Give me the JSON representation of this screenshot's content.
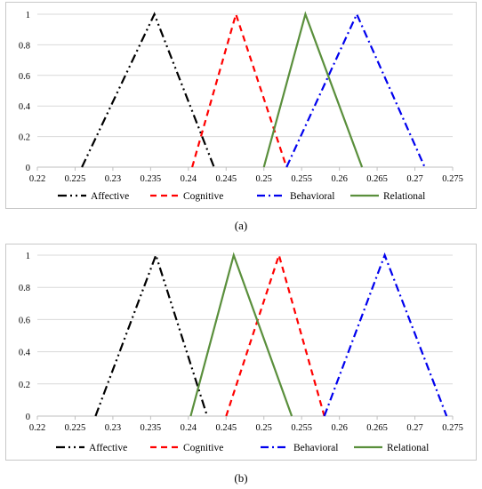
{
  "chart_data": [
    {
      "type": "line",
      "panel_label": "a",
      "xlim": [
        0.22,
        0.275
      ],
      "ylim": [
        0,
        1
      ],
      "xticks": [
        "0.22",
        "0.225",
        "0.23",
        "0.235",
        "0.24",
        "0.245",
        "0.25",
        "0.255",
        "0.26",
        "0.265",
        "0.27",
        "0.275"
      ],
      "yticks": [
        "0",
        "0.2",
        "0.4",
        "0.6",
        "0.8",
        "1"
      ],
      "grid": true,
      "legend_position": "bottom",
      "series": [
        {
          "name": "Affective",
          "color": "#000000",
          "dash": "10,4,2,4,2,4",
          "points": [
            [
              0.2259,
              0
            ],
            [
              0.2355,
              1
            ],
            [
              0.2434,
              0
            ]
          ]
        },
        {
          "name": "Cognitive",
          "color": "#ff0000",
          "dash": "7,5",
          "points": [
            [
              0.2405,
              0
            ],
            [
              0.2463,
              1
            ],
            [
              0.253,
              0
            ]
          ]
        },
        {
          "name": "Behavioral",
          "color": "#0000ee",
          "dash": "9,4,2,4",
          "points": [
            [
              0.253,
              0
            ],
            [
              0.2623,
              1
            ],
            [
              0.2713,
              0
            ]
          ]
        },
        {
          "name": "Relational",
          "color": "#5a8f3c",
          "dash": "",
          "points": [
            [
              0.25,
              0
            ],
            [
              0.2555,
              1
            ],
            [
              0.263,
              0
            ]
          ]
        }
      ]
    },
    {
      "type": "line",
      "panel_label": "b",
      "xlim": [
        0.22,
        0.275
      ],
      "ylim": [
        0,
        1
      ],
      "xticks": [
        "0.22",
        "0.225",
        "0.23",
        "0.235",
        "0.24",
        "0.245",
        "0.25",
        "0.255",
        "0.26",
        "0.265",
        "0.27",
        "0.275"
      ],
      "yticks": [
        "0",
        "0.2",
        "0.4",
        "0.6",
        "0.8",
        "1"
      ],
      "grid": true,
      "legend_position": "bottom",
      "series": [
        {
          "name": "Affective",
          "color": "#000000",
          "dash": "10,4,2,4,2,4",
          "points": [
            [
              0.2277,
              0
            ],
            [
              0.2357,
              1
            ],
            [
              0.2425,
              0
            ]
          ]
        },
        {
          "name": "Cognitive",
          "color": "#ff0000",
          "dash": "7,5",
          "points": [
            [
              0.245,
              0
            ],
            [
              0.252,
              1
            ],
            [
              0.258,
              0
            ]
          ]
        },
        {
          "name": "Behavioral",
          "color": "#0000ee",
          "dash": "9,4,2,4",
          "points": [
            [
              0.258,
              0
            ],
            [
              0.266,
              1
            ],
            [
              0.2742,
              0
            ]
          ]
        },
        {
          "name": "Relational",
          "color": "#5a8f3c",
          "dash": "",
          "points": [
            [
              0.2403,
              0
            ],
            [
              0.246,
              1
            ],
            [
              0.2537,
              0
            ]
          ]
        }
      ]
    }
  ],
  "captions": {
    "a": "(a)",
    "b": "(b)"
  }
}
